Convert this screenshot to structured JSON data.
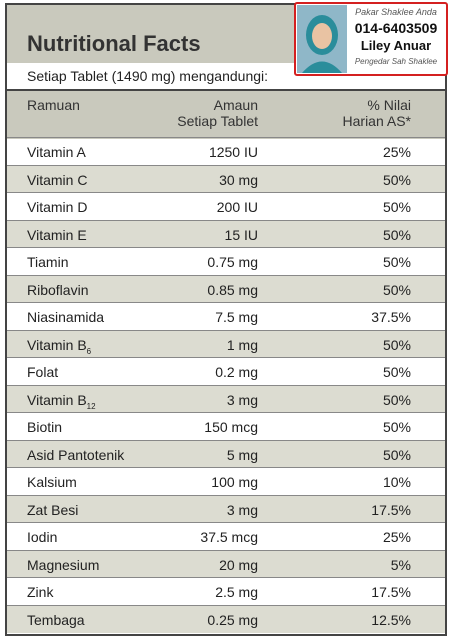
{
  "header": {
    "title": "Nutritional Facts",
    "subtitle": "Setiap Tablet (1490 mg) mengandungi:"
  },
  "badge": {
    "tagline": "Pakar Shaklee Anda",
    "phone": "014-6403509",
    "name": "Liley Anuar",
    "role": "Pengedar Sah Shaklee"
  },
  "table": {
    "columns": [
      [
        "Ramuan"
      ],
      [
        "Amaun",
        "Setiap Tablet"
      ],
      [
        "% Nilai",
        "Harian AS*"
      ]
    ],
    "rows": [
      {
        "name": "Vitamin A",
        "amount": "1250 IU",
        "dv": "25%"
      },
      {
        "name": "Vitamin C",
        "amount": "30 mg",
        "dv": "50%"
      },
      {
        "name": "Vitamin D",
        "amount": "200 IU",
        "dv": "50%"
      },
      {
        "name": "Vitamin E",
        "amount": "15 IU",
        "dv": "50%"
      },
      {
        "name": "Tiamin",
        "amount": "0.75 mg",
        "dv": "50%"
      },
      {
        "name": "Riboflavin",
        "amount": "0.85 mg",
        "dv": "50%"
      },
      {
        "name": "Niasinamida",
        "amount": "7.5 mg",
        "dv": "37.5%"
      },
      {
        "name": "Vitamin B",
        "sub": "6",
        "amount": "1 mg",
        "dv": "50%"
      },
      {
        "name": "Folat",
        "amount": "0.2 mg",
        "dv": "50%"
      },
      {
        "name": "Vitamin B",
        "sub": "12",
        "amount": "3 mg",
        "dv": "50%"
      },
      {
        "name": "Biotin",
        "amount": "150 mcg",
        "dv": "50%"
      },
      {
        "name": "Asid Pantotenik",
        "amount": "5 mg",
        "dv": "50%"
      },
      {
        "name": "Kalsium",
        "amount": "100 mg",
        "dv": "10%"
      },
      {
        "name": "Zat Besi",
        "amount": "3 mg",
        "dv": "17.5%"
      },
      {
        "name": "Iodin",
        "amount": "37.5 mcg",
        "dv": "25%"
      },
      {
        "name": "Magnesium",
        "amount": "20 mg",
        "dv": "5%"
      },
      {
        "name": "Zink",
        "amount": "2.5 mg",
        "dv": "17.5%"
      },
      {
        "name": "Tembaga",
        "amount": "0.25 mg",
        "dv": "12.5%"
      }
    ]
  }
}
